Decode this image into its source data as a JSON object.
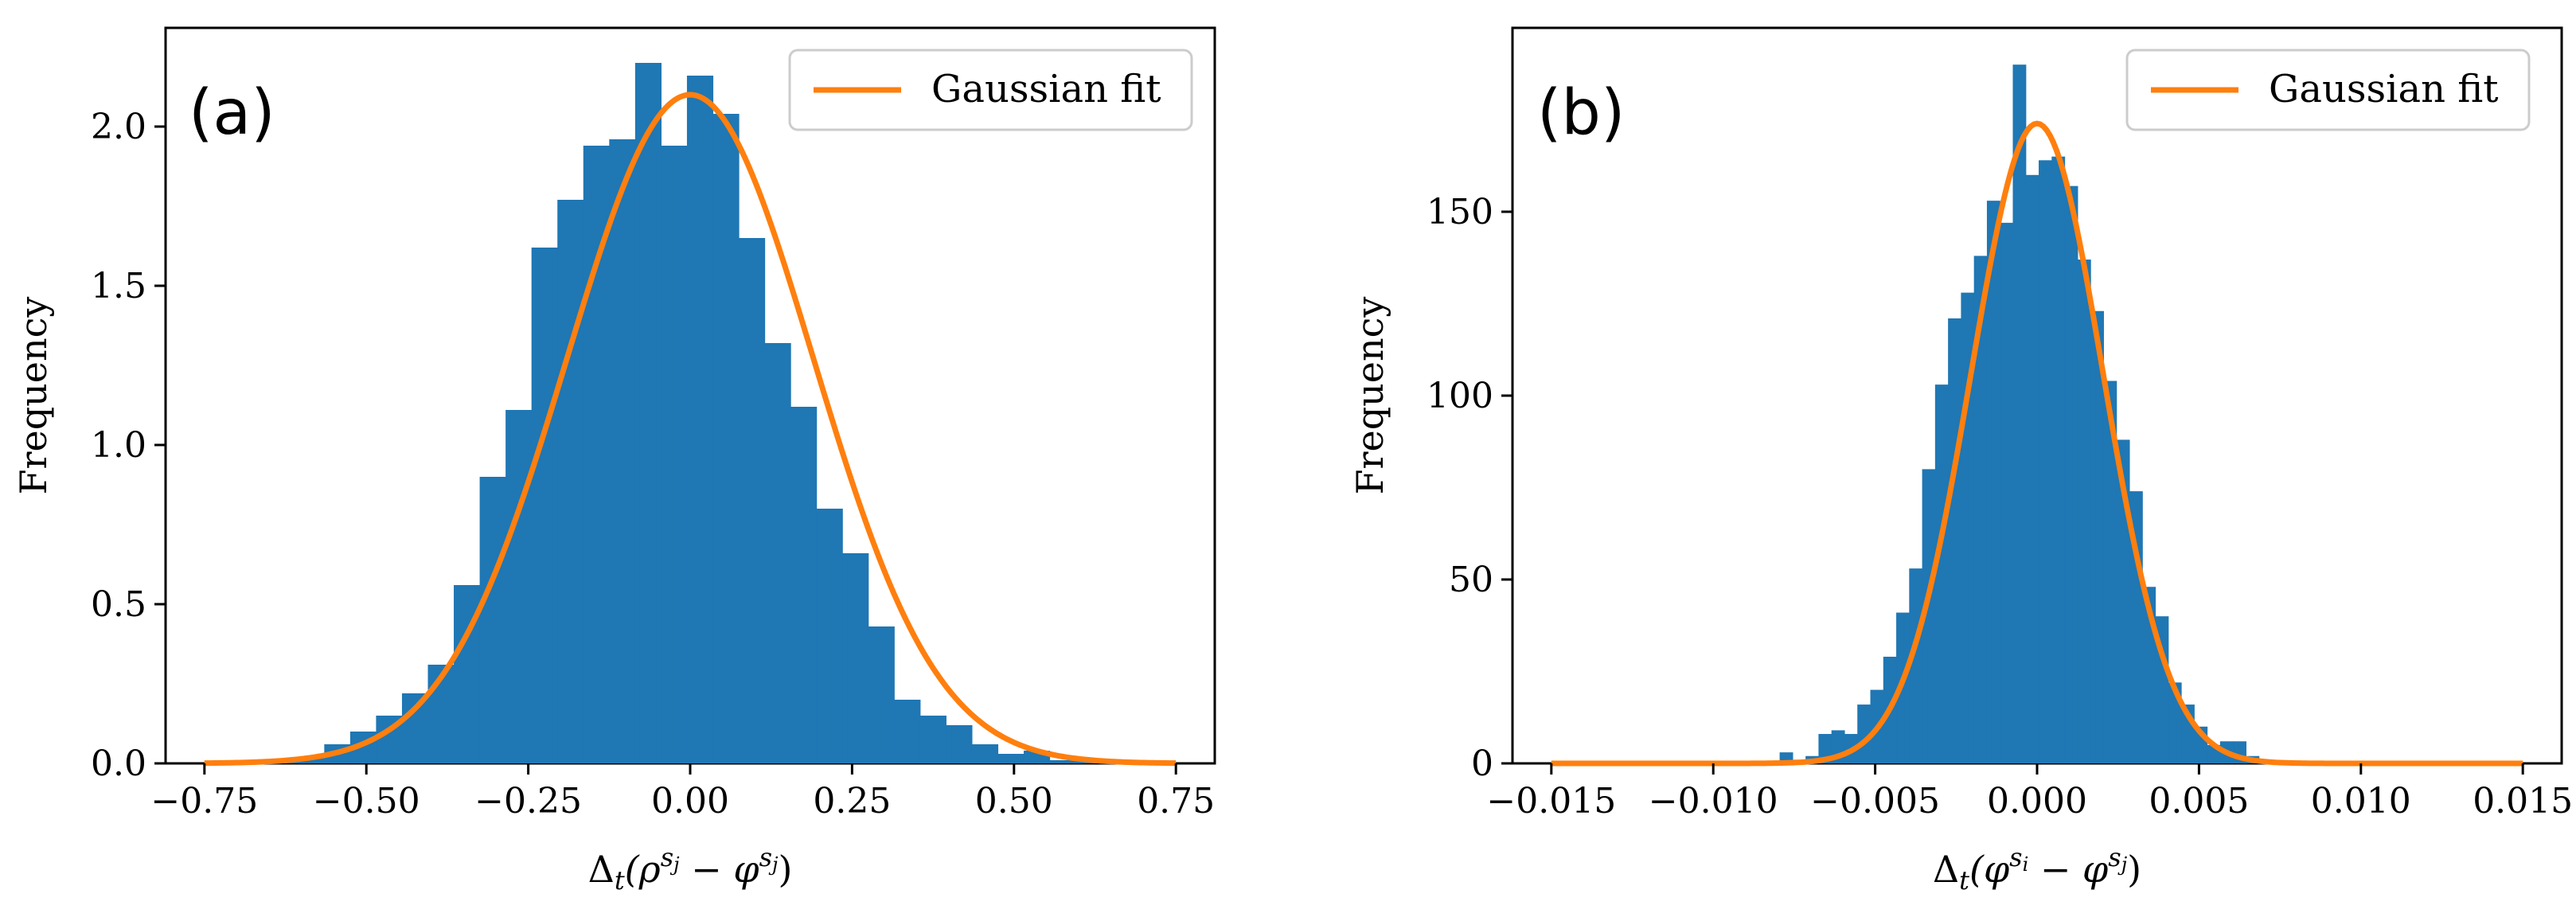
{
  "colors": {
    "bar": "#1f77b4",
    "fit": "#ff7f0e",
    "axis": "#000000",
    "legend_border": "#cccccc"
  },
  "chart_data": [
    {
      "type": "bar",
      "panel_label": "(a)",
      "title": "",
      "xlabel": "Δ_t(ρ^{s_j} − φ^{s_j})",
      "xlabel_parts": {
        "prefix": "Δ",
        "sub": "t",
        "open": "(ρ",
        "sup1": "s",
        "sup1sub": "j",
        "mid": " − φ",
        "sup2": "s",
        "sup2sub": "j",
        "close": ")"
      },
      "ylabel": "Frequency",
      "xlim": [
        -0.81,
        0.81
      ],
      "ylim": [
        0,
        2.31
      ],
      "xticks": [
        -0.75,
        -0.5,
        -0.25,
        0.0,
        0.25,
        0.5,
        0.75
      ],
      "xtick_labels": [
        "−0.75",
        "−0.50",
        "−0.25",
        "0.00",
        "0.25",
        "0.50",
        "0.75"
      ],
      "yticks": [
        0.0,
        0.5,
        1.0,
        1.5,
        2.0
      ],
      "ytick_labels": [
        "0.0",
        "0.5",
        "1.0",
        "1.5",
        "2.0"
      ],
      "legend": {
        "label": "Gaussian fit",
        "position": "top-right"
      },
      "histogram": {
        "name": "Frequency",
        "bin_edges": [
          -0.645,
          -0.605,
          -0.565,
          -0.525,
          -0.485,
          -0.445,
          -0.405,
          -0.365,
          -0.325,
          -0.285,
          -0.245,
          -0.205,
          -0.165,
          -0.125,
          -0.085,
          -0.045,
          -0.005,
          0.035,
          0.075,
          0.115,
          0.155,
          0.195,
          0.235,
          0.275,
          0.315,
          0.355,
          0.395,
          0.435,
          0.475,
          0.515,
          0.555,
          0.595,
          0.635
        ],
        "values": [
          0.01,
          0.02,
          0.06,
          0.1,
          0.15,
          0.22,
          0.31,
          0.56,
          0.9,
          1.11,
          1.62,
          1.77,
          1.94,
          1.96,
          2.2,
          1.94,
          2.16,
          2.04,
          1.65,
          1.32,
          1.12,
          0.8,
          0.66,
          0.43,
          0.2,
          0.15,
          0.12,
          0.06,
          0.03,
          0.04,
          0.01,
          0.01
        ]
      },
      "fit": {
        "name": "Gaussian fit",
        "mean": 0.0,
        "std": 0.19,
        "peak": 2.1,
        "x_range": [
          -0.75,
          0.75
        ]
      }
    },
    {
      "type": "bar",
      "panel_label": "(b)",
      "title": "",
      "xlabel": "Δ_t(φ^{s_i} − φ^{s_j})",
      "xlabel_parts": {
        "prefix": "Δ",
        "sub": "t",
        "open": "(φ",
        "sup1": "s",
        "sup1sub": "i",
        "mid": " − φ",
        "sup2": "s",
        "sup2sub": "j",
        "close": ")"
      },
      "ylabel": "Frequency",
      "xlim": [
        -0.0162,
        0.0162
      ],
      "ylim": [
        0,
        200
      ],
      "xticks": [
        -0.015,
        -0.01,
        -0.005,
        0.0,
        0.005,
        0.01,
        0.015
      ],
      "xtick_labels": [
        "−0.015",
        "−0.010",
        "−0.005",
        "0.000",
        "0.005",
        "0.010",
        "0.015"
      ],
      "yticks": [
        0,
        50,
        100,
        150
      ],
      "ytick_labels": [
        "0",
        "50",
        "100",
        "150"
      ],
      "legend": {
        "label": "Gaussian fit",
        "position": "top-right"
      },
      "histogram": {
        "name": "Frequency",
        "bin_edges": [
          -0.00795,
          -0.00755,
          -0.00715,
          -0.00675,
          -0.00635,
          -0.00595,
          -0.00555,
          -0.00515,
          -0.00475,
          -0.00435,
          -0.00395,
          -0.00355,
          -0.00315,
          -0.00275,
          -0.00235,
          -0.00195,
          -0.00155,
          -0.00115,
          -0.00075,
          -0.00035,
          5e-05,
          0.00045,
          0.00085,
          0.00125,
          0.00165,
          0.00205,
          0.00245,
          0.00285,
          0.00325,
          0.00365,
          0.00405,
          0.00445,
          0.00485,
          0.00525,
          0.00565,
          0.00605,
          0.00645,
          0.00685
        ],
        "values": [
          3,
          1,
          2,
          8,
          9,
          8,
          16,
          20,
          29,
          41,
          53,
          80,
          103,
          121,
          128,
          138,
          153,
          147,
          190,
          160,
          164,
          165,
          157,
          137,
          123,
          104,
          88,
          74,
          48,
          40,
          22,
          16,
          10,
          5,
          6,
          6,
          2
        ]
      },
      "fit": {
        "name": "Gaussian fit",
        "mean": 0.0,
        "std": 0.00205,
        "peak": 174,
        "x_range": [
          -0.015,
          0.015
        ]
      }
    }
  ]
}
